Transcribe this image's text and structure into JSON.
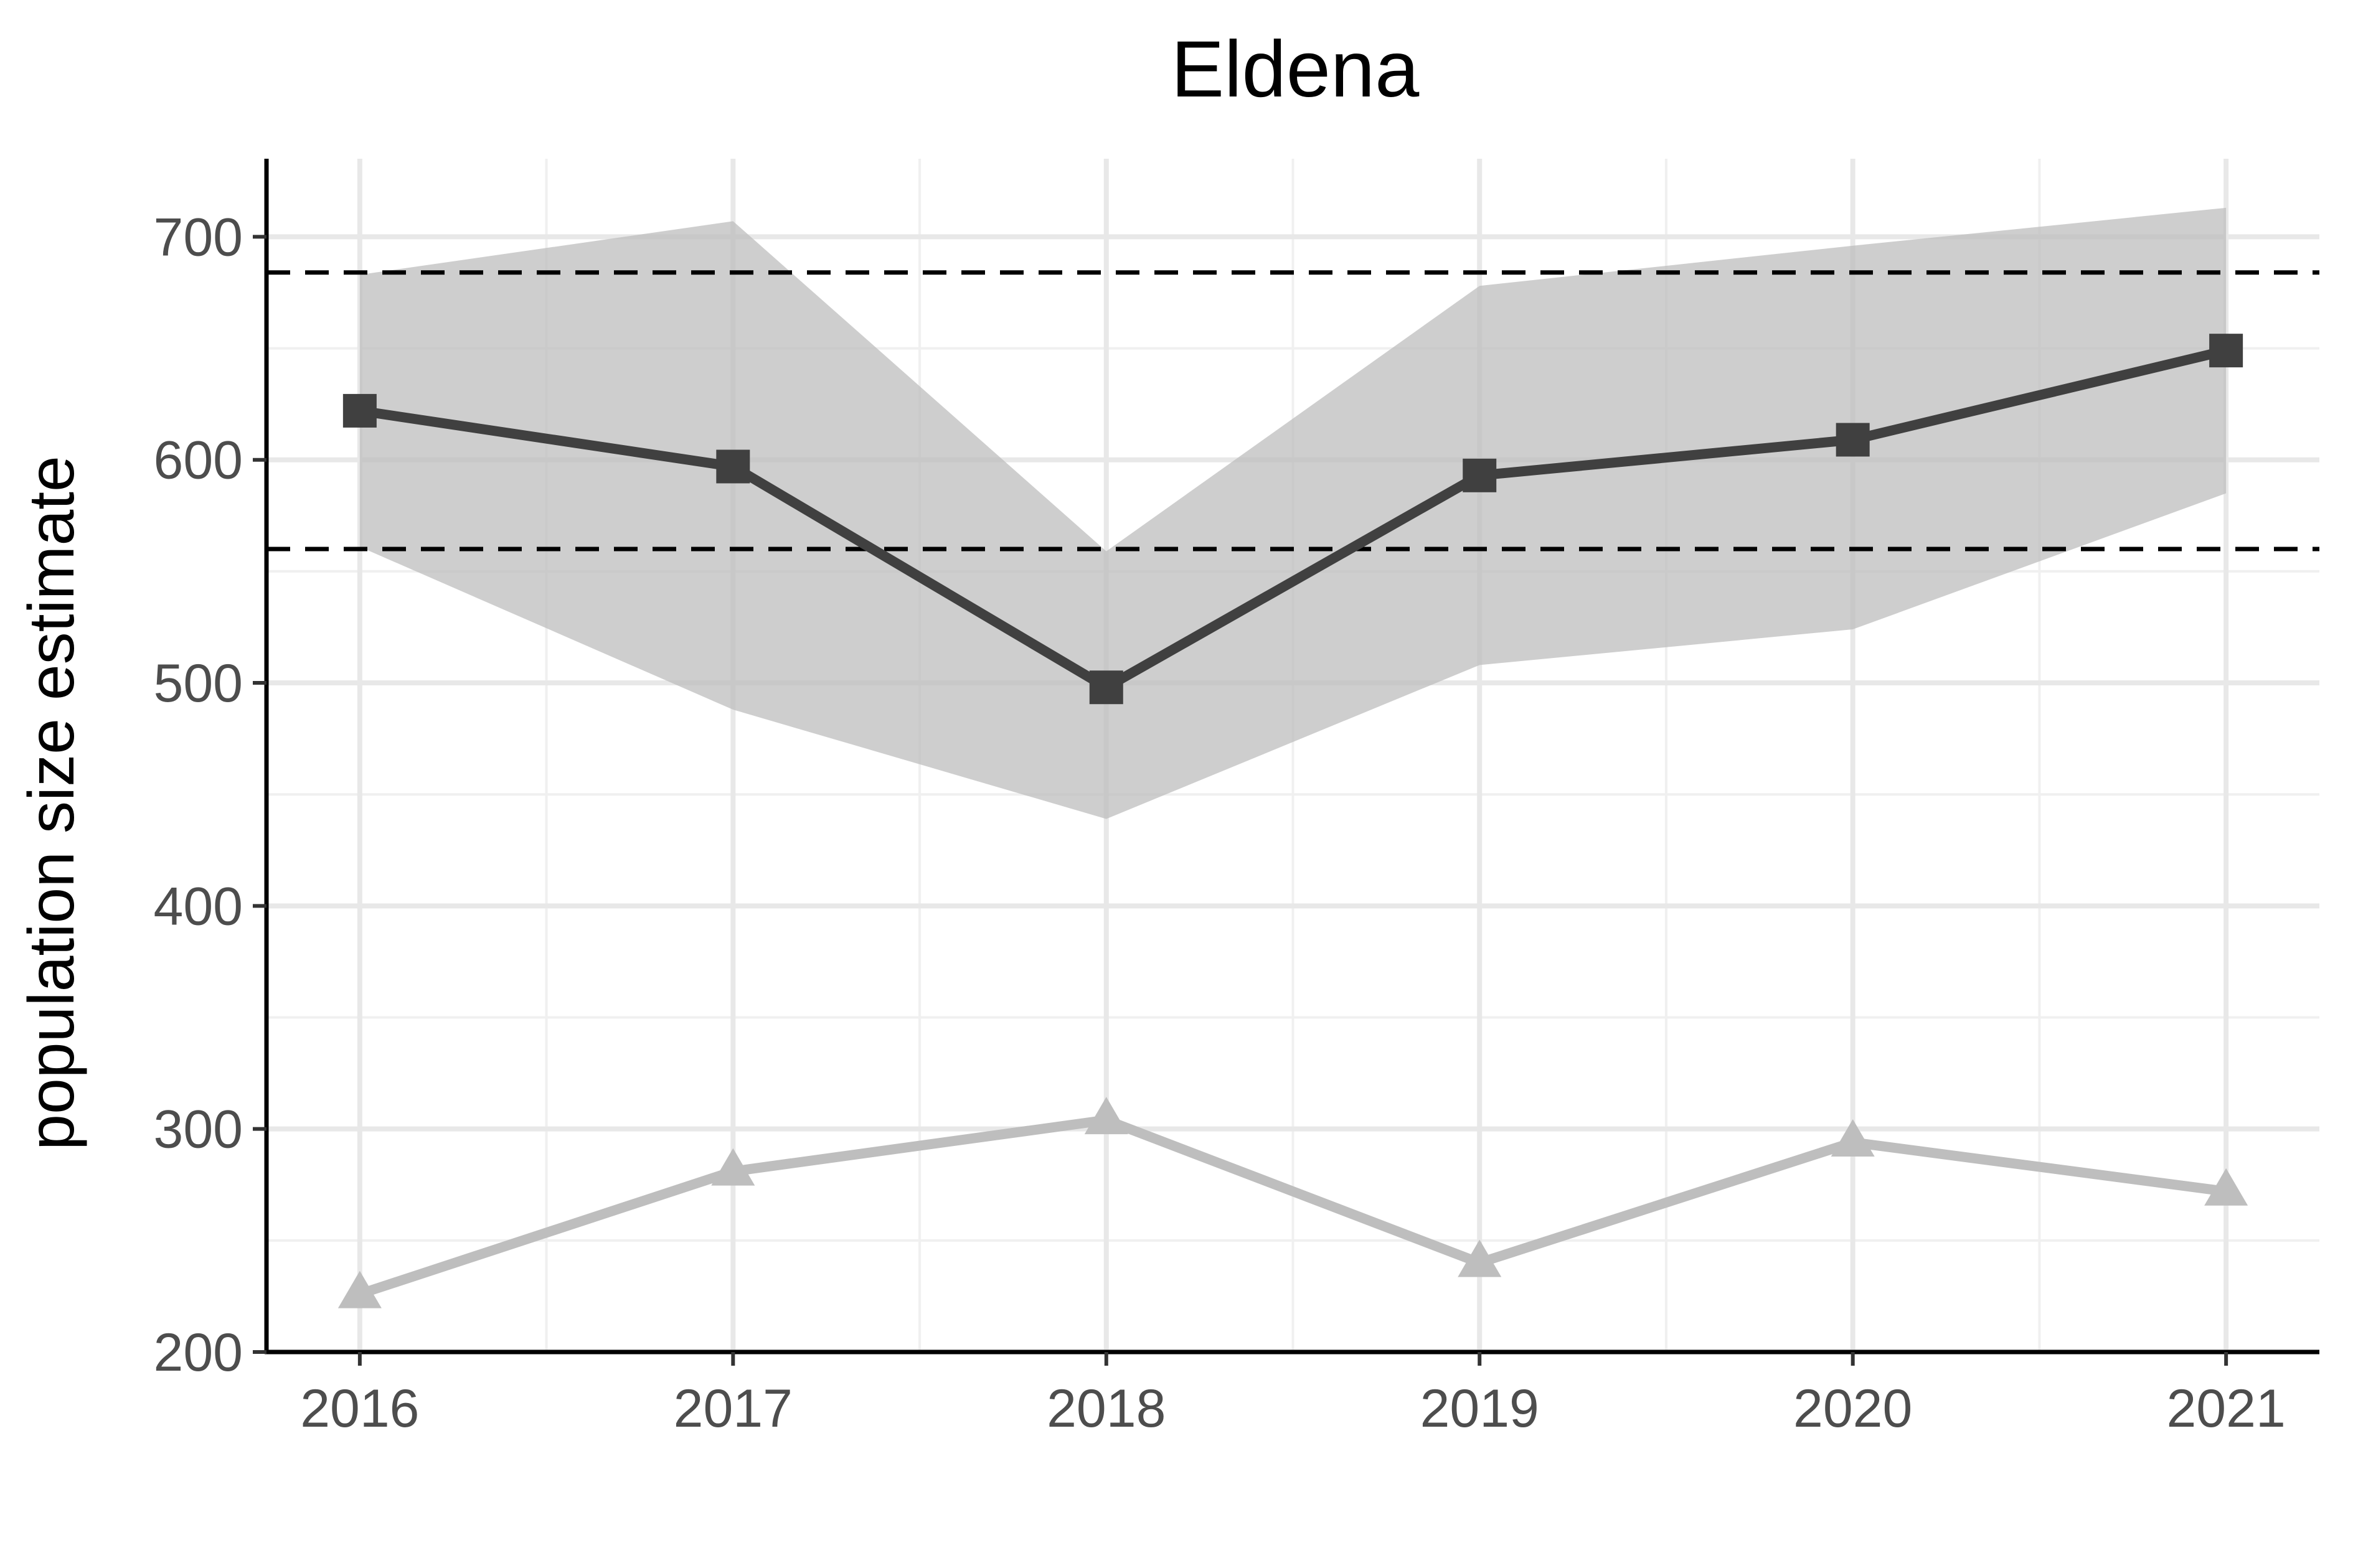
{
  "chart_data": {
    "type": "line",
    "title": "Eldena",
    "xlabel": "",
    "ylabel": "population size estimate",
    "x": [
      2016,
      2017,
      2018,
      2019,
      2020,
      2021
    ],
    "xticks": [
      "2016",
      "2017",
      "2018",
      "2019",
      "2020",
      "2021"
    ],
    "yticks": [
      "200",
      "300",
      "400",
      "500",
      "600",
      "700"
    ],
    "ylim": [
      200,
      735
    ],
    "xlim": [
      2015.75,
      2021.25
    ],
    "grid": true,
    "legend": "none",
    "series": [
      {
        "marker": "square",
        "color": "#404040",
        "values": [
          622,
          597,
          498,
          593,
          609,
          649
        ],
        "ci_lower": [
          561,
          488,
          439,
          508,
          524,
          585
        ],
        "ci_upper": [
          683,
          707,
          559,
          678,
          696,
          713
        ],
        "ci_color": "#bebebe"
      },
      {
        "marker": "triangle",
        "color": "#bebebe",
        "values": [
          226,
          281,
          304,
          240,
          294,
          272
        ]
      }
    ],
    "reference_lines": [
      {
        "y": 684,
        "style": "dashed",
        "color": "#000000"
      },
      {
        "y": 560,
        "style": "dashed",
        "color": "#000000"
      }
    ]
  }
}
